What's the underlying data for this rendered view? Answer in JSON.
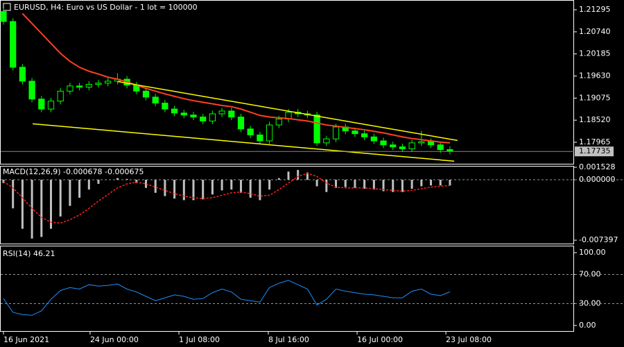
{
  "chart_data": [
    {
      "type": "candlestick",
      "title": "EURUSD, H4:  Euro vs US Dollar - 1 lot = 100000",
      "x": [
        0,
        1,
        2,
        3,
        4,
        5,
        6,
        7,
        8,
        9,
        10,
        11,
        12,
        13,
        14,
        15,
        16,
        17,
        18,
        19,
        20,
        21,
        22,
        23,
        24,
        25,
        26,
        27,
        28,
        29,
        30,
        31,
        32,
        33,
        34,
        35,
        36,
        37,
        38,
        39,
        40,
        41,
        42,
        43,
        44,
        45,
        46,
        47
      ],
      "open": [
        1.2125,
        1.21,
        1.1985,
        1.195,
        1.1905,
        1.188,
        1.19,
        1.1925,
        1.1938,
        1.1935,
        1.1942,
        1.1945,
        1.195,
        1.1955,
        1.194,
        1.1925,
        1.191,
        1.1895,
        1.188,
        1.187,
        1.1865,
        1.186,
        1.185,
        1.1868,
        1.1875,
        1.186,
        1.183,
        1.1815,
        1.18,
        1.184,
        1.1855,
        1.1872,
        1.1868,
        1.1865,
        1.1795,
        1.1805,
        1.1835,
        1.1825,
        1.1818,
        1.181,
        1.18,
        1.179,
        1.1785,
        1.178,
        1.1795,
        1.1798,
        1.179,
        1.1778
      ],
      "high": [
        1.2133,
        1.2108,
        1.1993,
        1.1958,
        1.1913,
        1.1908,
        1.1933,
        1.1946,
        1.1946,
        1.195,
        1.1953,
        1.1958,
        1.197,
        1.1963,
        1.1948,
        1.1933,
        1.1918,
        1.1903,
        1.1888,
        1.1878,
        1.1873,
        1.1868,
        1.1876,
        1.1883,
        1.1883,
        1.1868,
        1.1838,
        1.1823,
        1.1848,
        1.1863,
        1.188,
        1.188,
        1.1876,
        1.1873,
        1.1813,
        1.1843,
        1.1843,
        1.1833,
        1.1826,
        1.1818,
        1.1808,
        1.1798,
        1.1793,
        1.1803,
        1.1825,
        1.1806,
        1.1798,
        1.1786
      ],
      "low": [
        1.2092,
        1.1977,
        1.1942,
        1.1897,
        1.1872,
        1.1872,
        1.1892,
        1.1917,
        1.1927,
        1.1927,
        1.1934,
        1.1937,
        1.1942,
        1.1932,
        1.1917,
        1.1902,
        1.1887,
        1.1872,
        1.1862,
        1.1857,
        1.1852,
        1.1842,
        1.1842,
        1.186,
        1.1852,
        1.1822,
        1.1807,
        1.1792,
        1.1792,
        1.1832,
        1.1847,
        1.186,
        1.1857,
        1.1787,
        1.1787,
        1.1797,
        1.1817,
        1.181,
        1.1802,
        1.1792,
        1.1782,
        1.1777,
        1.1772,
        1.1772,
        1.1787,
        1.1782,
        1.177,
        1.1766
      ],
      "close": [
        1.21,
        1.1985,
        1.195,
        1.1905,
        1.188,
        1.19,
        1.1925,
        1.1938,
        1.1935,
        1.1942,
        1.1945,
        1.195,
        1.1955,
        1.194,
        1.1925,
        1.191,
        1.1895,
        1.188,
        1.187,
        1.1865,
        1.186,
        1.185,
        1.1868,
        1.1875,
        1.186,
        1.183,
        1.1815,
        1.18,
        1.184,
        1.1855,
        1.1872,
        1.1868,
        1.1865,
        1.1795,
        1.1805,
        1.1835,
        1.1825,
        1.1818,
        1.181,
        1.18,
        1.179,
        1.1785,
        1.178,
        1.1795,
        1.1798,
        1.179,
        1.1778,
        1.1774
      ],
      "color": "#00ff00",
      "overlays": [
        {
          "color": "#ff4020",
          "values": [
            null,
            null,
            1.212,
            1.2095,
            1.207,
            1.2045,
            1.202,
            1.2,
            1.1985,
            1.1975,
            1.1968,
            1.196,
            1.1955,
            1.1948,
            1.194,
            1.1932,
            1.1925,
            1.1918,
            1.1912,
            1.1906,
            1.1901,
            1.1897,
            1.1893,
            1.1889,
            1.1886,
            1.188,
            1.1872,
            1.1864,
            1.186,
            1.1858,
            1.1856,
            1.1853,
            1.185,
            1.1845,
            1.184,
            1.1837,
            1.1834,
            1.1831,
            1.1828,
            1.1824,
            1.182,
            1.1815,
            1.181,
            1.1806,
            1.1803,
            1.18,
            1.1797,
            1.1795
          ]
        }
      ],
      "trendlines": [
        {
          "color": "#ffff00",
          "x": [
            12.04,
            47.8
          ],
          "values": [
            1.1949,
            1.1801
          ]
        },
        {
          "color": "#ffff00",
          "x": [
            3.07,
            47.45
          ],
          "values": [
            1.1843,
            1.1749
          ]
        }
      ],
      "last_price": 1.17735,
      "xlim": [
        -0.365,
        60.07
      ],
      "ylim": [
        1.17407,
        1.2154
      ],
      "yticks": [
        1.21295,
        {
          "value": 1.2074,
          "label": "1.20740"
        },
        1.20185,
        {
          "value": 1.1963,
          "label": "1.19630"
        },
        1.19075,
        {
          "value": 1.1852,
          "label": "1.18520"
        },
        1.17965
      ]
    },
    {
      "type": "macd",
      "title": "MACD(12,26,9) -0.000678 -0.000675",
      "x": [
        0,
        1,
        2,
        3,
        4,
        5,
        6,
        7,
        8,
        9,
        10,
        11,
        12,
        13,
        14,
        15,
        16,
        17,
        18,
        19,
        20,
        21,
        22,
        23,
        24,
        25,
        26,
        27,
        28,
        29,
        30,
        31,
        32,
        33,
        34,
        35,
        36,
        37,
        38,
        39,
        40,
        41,
        42,
        43,
        44,
        45,
        46,
        47
      ],
      "values": [
        -0.0004,
        -0.0035,
        -0.006,
        -0.0072,
        -0.007,
        -0.006,
        -0.0045,
        -0.0032,
        -0.0022,
        -0.0012,
        -0.0005,
        0.0,
        0.0002,
        0.0001,
        -0.0004,
        -0.001,
        -0.0016,
        -0.002,
        -0.0023,
        -0.0025,
        -0.0025,
        -0.0024,
        -0.0018,
        -0.0013,
        -0.0012,
        -0.0016,
        -0.0022,
        -0.0025,
        -0.0012,
        0.0002,
        0.001,
        0.0012,
        0.0009,
        -0.0008,
        -0.0015,
        -0.001,
        -0.0009,
        -0.001,
        -0.0011,
        -0.0012,
        -0.0014,
        -0.0015,
        -0.0015,
        -0.0011,
        -0.0008,
        -0.0007,
        -0.0007,
        -0.0007
      ],
      "color": "#c0c0c0",
      "signal": {
        "color": "#ff2020",
        "values": [
          -0.0002,
          -0.001,
          -0.0022,
          -0.0035,
          -0.0046,
          -0.0052,
          -0.0053,
          -0.0049,
          -0.0043,
          -0.0035,
          -0.0026,
          -0.0018,
          -0.001,
          -0.0005,
          -0.0003,
          -0.0005,
          -0.0009,
          -0.0013,
          -0.0017,
          -0.002,
          -0.0022,
          -0.0023,
          -0.0022,
          -0.0019,
          -0.0016,
          -0.0015,
          -0.0017,
          -0.002,
          -0.0019,
          -0.0012,
          -0.0004,
          0.0004,
          0.0008,
          0.0004,
          -0.0004,
          -0.0009,
          -0.001,
          -0.001,
          -0.001,
          -0.0011,
          -0.0012,
          -0.0013,
          -0.0014,
          -0.0013,
          -0.0011,
          -0.0009,
          -0.0008,
          -0.0007
        ]
      },
      "levels": [
        0
      ],
      "xlim": [
        -0.365,
        60.07
      ],
      "ylim": [
        -0.0079,
        0.0017
      ],
      "yticks": [
        0.001528,
        {
          "value": 0,
          "label": "0.000000"
        },
        -0.007397
      ]
    },
    {
      "type": "line",
      "title": "RSI(14) 46.21",
      "x": [
        0,
        1,
        2,
        3,
        4,
        5,
        6,
        7,
        8,
        9,
        10,
        11,
        12,
        13,
        14,
        15,
        16,
        17,
        18,
        19,
        20,
        21,
        22,
        23,
        24,
        25,
        26,
        27,
        28,
        29,
        30,
        31,
        32,
        33,
        34,
        35,
        36,
        37,
        38,
        39,
        40,
        41,
        42,
        43,
        44,
        45,
        46,
        47
      ],
      "values": [
        37,
        18,
        15,
        14,
        20,
        36,
        48,
        52,
        50,
        56,
        54,
        55,
        57,
        50,
        46,
        40,
        34,
        38,
        42,
        40,
        36,
        37,
        45,
        50,
        46,
        36,
        34,
        32,
        52,
        58,
        62,
        56,
        50,
        28,
        36,
        50,
        47,
        45,
        43,
        42,
        40,
        38,
        38,
        47,
        50,
        43,
        41,
        46.21
      ],
      "color": "#1e90ff",
      "levels": [
        70,
        30
      ],
      "xlim": [
        -0.365,
        60.07
      ],
      "ylim": [
        -8.6,
        108.6
      ],
      "yticks": [
        {
          "value": 100,
          "label": "100.00"
        },
        {
          "value": 70,
          "label": "70.00"
        },
        {
          "value": 30,
          "label": "30.00"
        },
        {
          "value": 0,
          "label": "0.00"
        }
      ],
      "xticks": [
        {
          "value": 0,
          "label": "16 Jun 2021"
        },
        {
          "value": 9.12,
          "label": "24 Jun 00:00"
        },
        {
          "value": 18.47,
          "label": "1 Jul 08:00"
        },
        {
          "value": 27.88,
          "label": "8 Jul 16:00"
        },
        {
          "value": 37.23,
          "label": "16 Jul 00:00"
        },
        {
          "value": 46.57,
          "label": "23 Jul 08:00"
        }
      ]
    }
  ]
}
